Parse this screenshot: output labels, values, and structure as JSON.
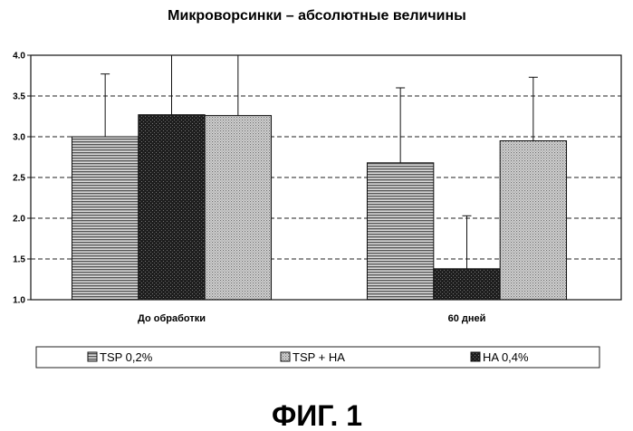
{
  "chart_data": {
    "type": "bar",
    "title": "Микроворсинки – абсолютные величины",
    "categories": [
      "До обработки",
      "60 дней"
    ],
    "series": [
      {
        "name": "TSP 0,2%",
        "values": [
          3.0,
          2.68
        ],
        "errors": [
          0.77,
          0.92
        ],
        "color": "#8f8f8f"
      },
      {
        "name": "HA 0,4%",
        "values": [
          3.27,
          1.38
        ],
        "errors": [
          0.73,
          0.65
        ],
        "color": "#2e2e2e"
      },
      {
        "name": "TSP + HA",
        "values": [
          3.26,
          2.95
        ],
        "errors": [
          0.74,
          0.78
        ],
        "color": "#b4b4b4"
      }
    ],
    "legend_order": [
      0,
      2,
      1
    ],
    "ylim": [
      1.0,
      4.0
    ],
    "yticks": [
      "1.0",
      "1.5",
      "2.0",
      "2.5",
      "3.0",
      "3.5",
      "4.0"
    ],
    "grid": "horizontal dashed",
    "legend_position": "bottom"
  },
  "caption": "ФИГ. 1"
}
